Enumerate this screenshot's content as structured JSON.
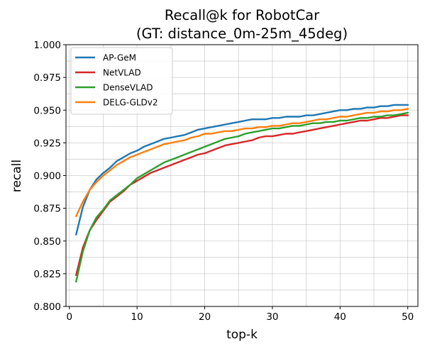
{
  "chart_data": {
    "type": "line",
    "title": "Recall@k for RobotCar",
    "subtitle": "(GT: distance_0m-25m_45deg)",
    "xlabel": "top-k",
    "ylabel": "recall",
    "xlim": [
      -0.5,
      51.5
    ],
    "ylim": [
      0.8,
      1.0
    ],
    "xticks": [
      0,
      10,
      20,
      30,
      40,
      50
    ],
    "yticks": [
      0.8,
      0.825,
      0.85,
      0.875,
      0.9,
      0.925,
      0.95,
      0.975,
      1.0
    ],
    "ytick_labels": [
      "0.800",
      "0.825",
      "0.850",
      "0.875",
      "0.900",
      "0.925",
      "0.950",
      "0.975",
      "1.000"
    ],
    "grid": true,
    "legend_position": "top-left",
    "x": [
      1,
      2,
      3,
      4,
      5,
      6,
      7,
      8,
      9,
      10,
      11,
      12,
      13,
      14,
      15,
      16,
      17,
      18,
      19,
      20,
      21,
      22,
      23,
      24,
      25,
      26,
      27,
      28,
      29,
      30,
      31,
      32,
      33,
      34,
      35,
      36,
      37,
      38,
      39,
      40,
      41,
      42,
      43,
      44,
      45,
      46,
      47,
      48,
      49,
      50
    ],
    "series": [
      {
        "name": "AP-GeM",
        "color": "#1f77b4",
        "values": [
          0.855,
          0.876,
          0.889,
          0.897,
          0.902,
          0.906,
          0.911,
          0.914,
          0.917,
          0.919,
          0.922,
          0.924,
          0.926,
          0.928,
          0.929,
          0.93,
          0.931,
          0.933,
          0.935,
          0.936,
          0.937,
          0.938,
          0.939,
          0.94,
          0.941,
          0.942,
          0.943,
          0.943,
          0.943,
          0.944,
          0.944,
          0.945,
          0.945,
          0.945,
          0.946,
          0.946,
          0.947,
          0.948,
          0.949,
          0.95,
          0.95,
          0.951,
          0.951,
          0.952,
          0.952,
          0.953,
          0.953,
          0.954,
          0.954,
          0.954
        ]
      },
      {
        "name": "NetVLAD",
        "color": "#d62728",
        "values": [
          0.824,
          0.845,
          0.858,
          0.866,
          0.873,
          0.88,
          0.884,
          0.888,
          0.893,
          0.896,
          0.899,
          0.902,
          0.904,
          0.906,
          0.908,
          0.91,
          0.912,
          0.914,
          0.916,
          0.917,
          0.919,
          0.921,
          0.923,
          0.924,
          0.925,
          0.926,
          0.927,
          0.929,
          0.93,
          0.93,
          0.931,
          0.932,
          0.932,
          0.933,
          0.934,
          0.935,
          0.936,
          0.937,
          0.938,
          0.939,
          0.94,
          0.941,
          0.942,
          0.942,
          0.943,
          0.944,
          0.944,
          0.945,
          0.946,
          0.946
        ]
      },
      {
        "name": "DenseVLAD",
        "color": "#2ca02c",
        "values": [
          0.819,
          0.842,
          0.858,
          0.868,
          0.874,
          0.881,
          0.885,
          0.889,
          0.893,
          0.898,
          0.901,
          0.904,
          0.907,
          0.91,
          0.912,
          0.914,
          0.916,
          0.918,
          0.92,
          0.922,
          0.924,
          0.926,
          0.928,
          0.929,
          0.93,
          0.932,
          0.933,
          0.934,
          0.935,
          0.936,
          0.936,
          0.937,
          0.938,
          0.938,
          0.939,
          0.94,
          0.94,
          0.941,
          0.941,
          0.942,
          0.942,
          0.943,
          0.944,
          0.944,
          0.945,
          0.945,
          0.946,
          0.946,
          0.947,
          0.948
        ]
      },
      {
        "name": "DELG-GLDv2",
        "color": "#ff7f0e",
        "values": [
          0.869,
          0.88,
          0.889,
          0.895,
          0.9,
          0.904,
          0.908,
          0.911,
          0.914,
          0.916,
          0.918,
          0.92,
          0.922,
          0.924,
          0.925,
          0.926,
          0.927,
          0.929,
          0.93,
          0.932,
          0.932,
          0.933,
          0.934,
          0.934,
          0.935,
          0.936,
          0.936,
          0.937,
          0.937,
          0.938,
          0.938,
          0.939,
          0.94,
          0.94,
          0.941,
          0.942,
          0.943,
          0.943,
          0.944,
          0.945,
          0.945,
          0.946,
          0.947,
          0.948,
          0.948,
          0.949,
          0.949,
          0.95,
          0.95,
          0.951
        ]
      }
    ]
  }
}
